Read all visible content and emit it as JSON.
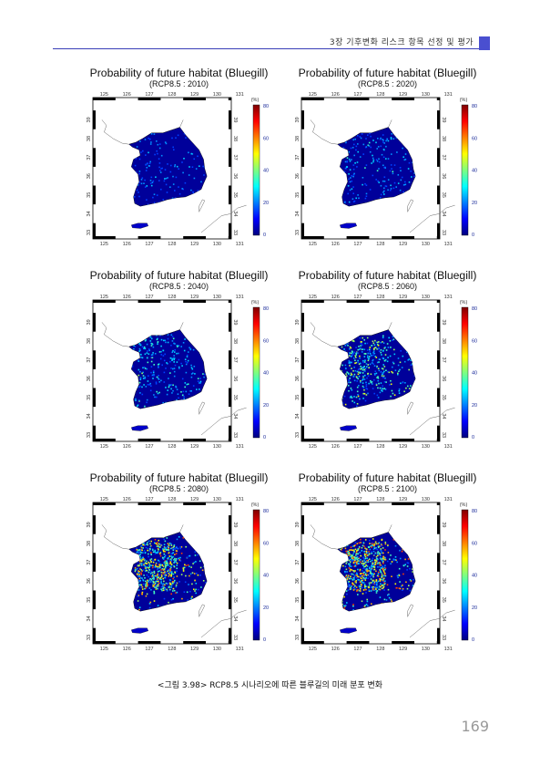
{
  "header": {
    "chapter": "3장 기후변화 리스크 항목 선정 및 평가"
  },
  "panels": [
    {
      "title": "Probability of future habitat (Bluegill)",
      "subtitle": "(RCP8.5 : 2010)"
    },
    {
      "title": "Probability of future habitat (Bluegill)",
      "subtitle": "(RCP8.5 : 2020)"
    },
    {
      "title": "Probability of future habitat (Bluegill)",
      "subtitle": "(RCP8.5 : 2040)"
    },
    {
      "title": "Probability of future habitat (Bluegill)",
      "subtitle": "(RCP8.5 : 2060)"
    },
    {
      "title": "Probability of future habitat (Bluegill)",
      "subtitle": "(RCP8.5 : 2080)"
    },
    {
      "title": "Probability of future habitat (Bluegill)",
      "subtitle": "(RCP8.5 : 2100)"
    }
  ],
  "map": {
    "lon_ticks": [
      "125",
      "126",
      "127",
      "128",
      "129",
      "130",
      "131"
    ],
    "lat_ticks": [
      "33",
      "34",
      "35",
      "36",
      "37",
      "38",
      "39"
    ],
    "colorbar_unit": "(%)",
    "colorbar_ticks": [
      "0",
      "20",
      "40",
      "60",
      "80"
    ],
    "colorbar_colors": [
      "#00007f",
      "#0000ff",
      "#007fff",
      "#00ffff",
      "#7fff7f",
      "#ffff00",
      "#ff7f00",
      "#ff0000",
      "#7f0000"
    ],
    "habitat_levels": [
      0.05,
      0.12,
      0.22,
      0.38,
      0.6,
      0.68
    ]
  },
  "caption": "<그림 3.98> RCP8.5 시나리오에 따른 블루길의 미래 분포 변화",
  "page_number": "169"
}
